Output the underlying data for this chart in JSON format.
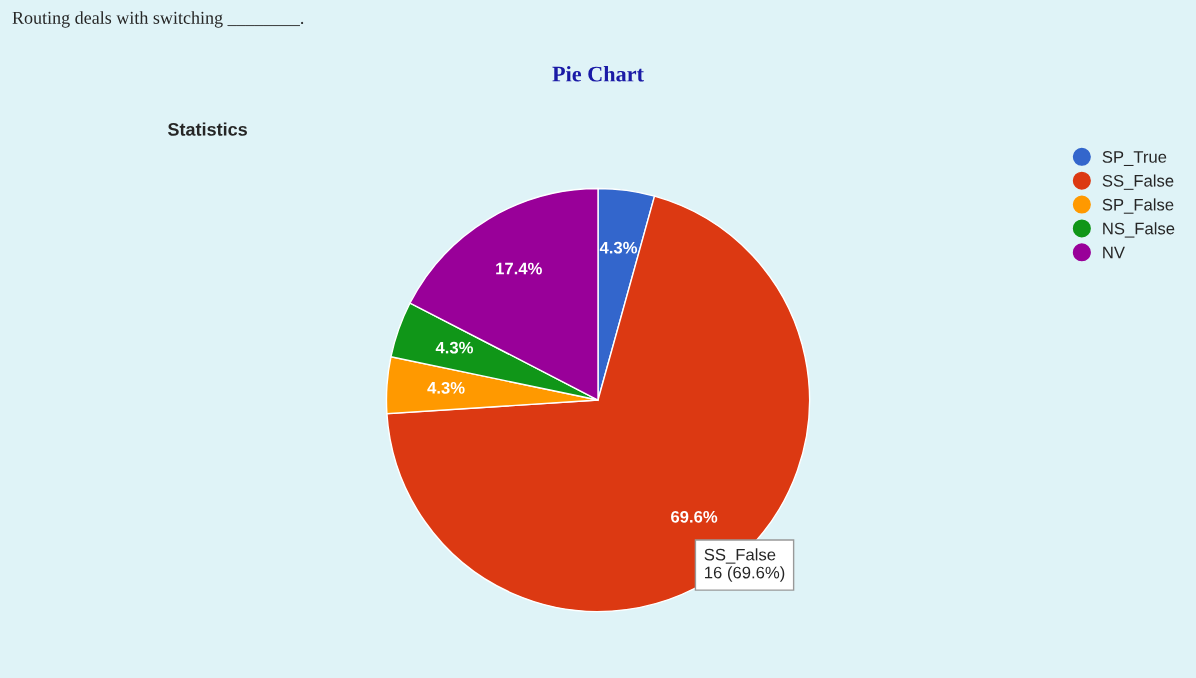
{
  "chart_data": {
    "type": "pie",
    "title": "Pie Chart",
    "subtitle": "Statistics",
    "categories": [
      "SP_True",
      "SS_False",
      "SP_False",
      "NS_False",
      "NV"
    ],
    "values": [
      4.3,
      69.6,
      4.3,
      4.3,
      17.4
    ],
    "colors": [
      "#3366cc",
      "#dc3912",
      "#ff9900",
      "#109618",
      "#990099"
    ],
    "value_labels": [
      "4.3%",
      "69.6%",
      "4.3%",
      "4.3%",
      "17.4%"
    ],
    "legend": "top right",
    "annotations": [
      "Routing deals with switching ________.",
      "SS_False\n16 (69.6%)"
    ]
  }
}
